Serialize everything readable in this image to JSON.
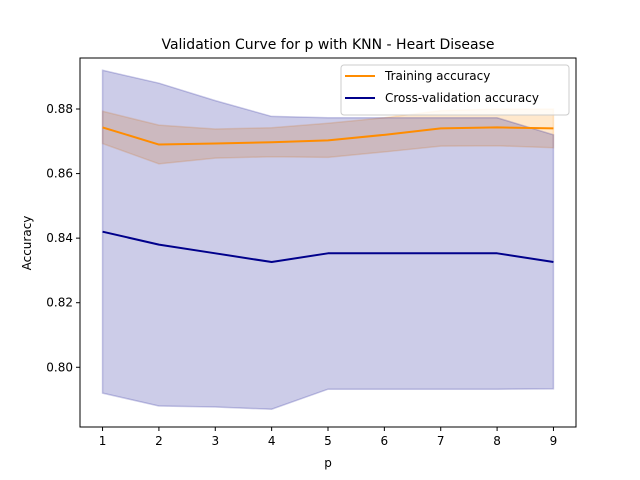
{
  "chart_data": {
    "type": "line",
    "title": "Validation Curve for p with KNN - Heart Disease",
    "xlabel": "p",
    "ylabel": "Accuracy",
    "x": [
      1,
      2,
      3,
      4,
      5,
      6,
      7,
      8,
      9
    ],
    "xlim": [
      0.6,
      9.4
    ],
    "ylim": [
      0.7815,
      0.8958
    ],
    "xticks": [
      1,
      2,
      3,
      4,
      5,
      6,
      7,
      8,
      9
    ],
    "yticks": [
      0.8,
      0.82,
      0.84,
      0.86,
      0.88
    ],
    "ytick_labels": [
      "0.80",
      "0.82",
      "0.84",
      "0.86",
      "0.88"
    ],
    "grid": false,
    "legend": "top-right",
    "series": [
      {
        "name": "Training accuracy",
        "color": "#ff8c00",
        "values": [
          0.8743,
          0.869,
          0.8693,
          0.8697,
          0.8703,
          0.872,
          0.874,
          0.8743,
          0.874
        ],
        "band_upper": [
          0.8793,
          0.875,
          0.8738,
          0.8742,
          0.8756,
          0.8773,
          0.8795,
          0.88,
          0.88
        ],
        "band_lower": [
          0.8693,
          0.863,
          0.8648,
          0.8652,
          0.865,
          0.8667,
          0.8685,
          0.8686,
          0.868
        ]
      },
      {
        "name": "Cross-validation accuracy",
        "color": "#00008b",
        "values": [
          0.842,
          0.838,
          0.8353,
          0.8326,
          0.8353,
          0.8353,
          0.8353,
          0.8353,
          0.8326
        ],
        "band_upper": [
          0.892,
          0.888,
          0.8826,
          0.8777,
          0.8773,
          0.8773,
          0.8773,
          0.8773,
          0.872
        ],
        "band_lower": [
          0.792,
          0.788,
          0.7877,
          0.787,
          0.7932,
          0.7932,
          0.7932,
          0.7932,
          0.7933
        ]
      }
    ]
  }
}
